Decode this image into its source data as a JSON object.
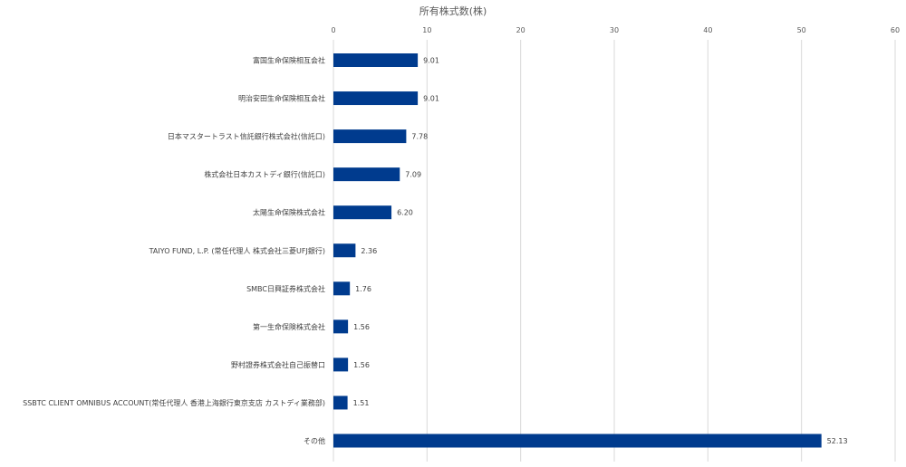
{
  "chart_data": {
    "type": "bar",
    "orientation": "horizontal",
    "xlabel": "所有株式数(株)",
    "xlim": [
      0,
      60
    ],
    "xticks": [
      0,
      10,
      20,
      30,
      40,
      50,
      60
    ],
    "grid": true,
    "axis_position": "top",
    "categories": [
      "富国生命保険相互会社",
      "明治安田生命保険相互会社",
      "日本マスタートラスト信託銀行株式会社(信託口)",
      "株式会社日本カストディ銀行(信託口)",
      "太陽生命保険株式会社",
      "TAIYO FUND, L.P. (常任代理人 株式会社三菱UFJ銀行)",
      "SMBC日興証券株式会社",
      "第一生命保険株式会社",
      "野村證券株式会社自己振替口",
      "SSBTC CLIENT OMNIBUS ACCOUNT(常任代理人 香港上海銀行東京支店 カストディ業務部)",
      "その他"
    ],
    "values": [
      9.01,
      9.01,
      7.78,
      7.09,
      6.2,
      2.36,
      1.76,
      1.56,
      1.56,
      1.51,
      52.13
    ],
    "value_labels": [
      "9.01",
      "9.01",
      "7.78",
      "7.09",
      "6.20",
      "2.36",
      "1.76",
      "1.56",
      "1.56",
      "1.51",
      "52.13"
    ],
    "colors": {
      "bar": "#003B8E"
    }
  }
}
